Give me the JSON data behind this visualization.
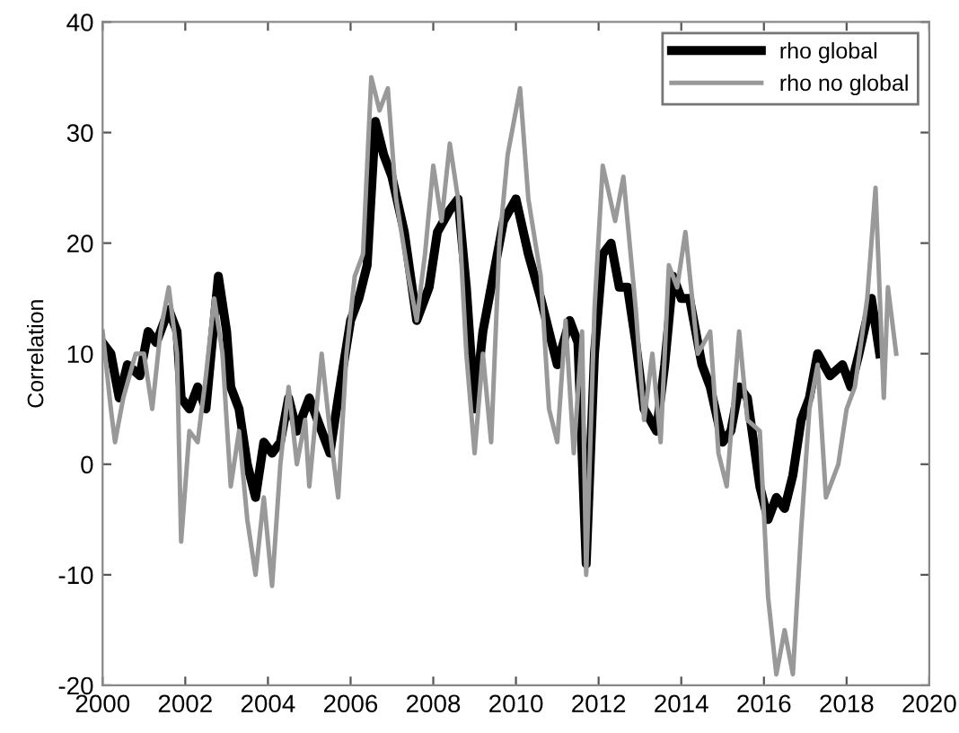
{
  "chart_data": {
    "type": "line",
    "ylabel": "Correlation",
    "legend": "top right",
    "grid": false,
    "marker": "none",
    "line_style": "solid",
    "xlim": [
      2000,
      2020
    ],
    "xticks": [
      2000,
      2002,
      2004,
      2006,
      2008,
      2010,
      2012,
      2014,
      2016,
      2018,
      2020
    ],
    "ylim": [
      -20,
      40
    ],
    "yticks": [
      -20,
      -10,
      0,
      10,
      20,
      30,
      40
    ],
    "series": [
      {
        "name": "rho global",
        "color": "#000000",
        "x": [
          2000.0,
          2000.2,
          2000.4,
          2000.6,
          2000.9,
          2001.1,
          2001.3,
          2001.6,
          2001.8,
          2001.9,
          2002.1,
          2002.3,
          2002.5,
          2002.6,
          2002.8,
          2003.0,
          2003.1,
          2003.3,
          2003.5,
          2003.7,
          2003.9,
          2004.1,
          2004.3,
          2004.5,
          2004.7,
          2005.0,
          2005.3,
          2005.5,
          2005.7,
          2006.0,
          2006.2,
          2006.4,
          2006.6,
          2006.8,
          2007.0,
          2007.3,
          2007.6,
          2007.9,
          2008.1,
          2008.4,
          2008.6,
          2008.8,
          2009.0,
          2009.2,
          2009.5,
          2009.7,
          2010.0,
          2010.3,
          2010.6,
          2010.8,
          2011.0,
          2011.3,
          2011.5,
          2011.7,
          2011.9,
          2012.1,
          2012.3,
          2012.5,
          2012.7,
          2012.9,
          2013.1,
          2013.4,
          2013.6,
          2013.8,
          2014.0,
          2014.2,
          2014.5,
          2014.7,
          2015.0,
          2015.2,
          2015.4,
          2015.6,
          2015.9,
          2016.1,
          2016.3,
          2016.5,
          2016.7,
          2016.9,
          2017.1,
          2017.3,
          2017.6,
          2017.9,
          2018.1,
          2018.3,
          2018.6,
          2018.8
        ],
        "values": [
          11,
          10,
          6,
          9,
          8,
          12,
          11,
          14,
          12,
          6,
          5,
          7,
          5,
          9,
          17,
          12,
          7,
          5,
          0,
          -3,
          2,
          1,
          2,
          6,
          3,
          6,
          3,
          1,
          6,
          13,
          15,
          18,
          31,
          28,
          26,
          21,
          13,
          16,
          21,
          23,
          24,
          16,
          5,
          12,
          18,
          22,
          24,
          19,
          15,
          12,
          9,
          13,
          11,
          -9,
          10,
          19,
          20,
          16,
          16,
          11,
          5,
          3,
          9,
          17,
          15,
          15,
          9,
          7,
          2,
          3,
          7,
          6,
          -2,
          -5,
          -3,
          -4,
          -1,
          4,
          6,
          10,
          8,
          9,
          7,
          10,
          15,
          10
        ]
      },
      {
        "name": "rho no global",
        "color": "#999999",
        "x": [
          2000.0,
          2000.2,
          2000.3,
          2000.5,
          2000.8,
          2001.0,
          2001.2,
          2001.4,
          2001.6,
          2001.8,
          2001.9,
          2002.1,
          2002.3,
          2002.5,
          2002.7,
          2002.9,
          2003.1,
          2003.3,
          2003.5,
          2003.7,
          2003.9,
          2004.1,
          2004.3,
          2004.5,
          2004.7,
          2004.9,
          2005.0,
          2005.3,
          2005.5,
          2005.7,
          2005.9,
          2006.1,
          2006.3,
          2006.5,
          2006.7,
          2006.9,
          2007.1,
          2007.4,
          2007.6,
          2007.8,
          2008.0,
          2008.2,
          2008.4,
          2008.6,
          2008.8,
          2009.0,
          2009.2,
          2009.4,
          2009.6,
          2009.8,
          2010.1,
          2010.3,
          2010.6,
          2010.8,
          2011.0,
          2011.2,
          2011.4,
          2011.6,
          2011.7,
          2011.9,
          2012.1,
          2012.4,
          2012.6,
          2012.9,
          2013.1,
          2013.3,
          2013.5,
          2013.7,
          2013.9,
          2014.1,
          2014.4,
          2014.7,
          2014.9,
          2015.1,
          2015.4,
          2015.6,
          2015.9,
          2016.1,
          2016.3,
          2016.5,
          2016.7,
          2016.9,
          2017.1,
          2017.3,
          2017.5,
          2017.8,
          2018.0,
          2018.2,
          2018.5,
          2018.7,
          2018.9,
          2019.0,
          2019.2
        ],
        "values": [
          12,
          5,
          2,
          6,
          10,
          10,
          5,
          12,
          16,
          10,
          -7,
          3,
          2,
          8,
          15,
          10,
          -2,
          3,
          -5,
          -10,
          -3,
          -11,
          0,
          7,
          0,
          4,
          -2,
          10,
          3,
          -3,
          10,
          17,
          19,
          35,
          32,
          34,
          24,
          17,
          13,
          19,
          27,
          22,
          29,
          24,
          10,
          1,
          10,
          2,
          20,
          28,
          34,
          24,
          17,
          5,
          2,
          13,
          1,
          12,
          -10,
          14,
          27,
          22,
          26,
          14,
          4,
          10,
          2,
          18,
          16,
          21,
          10,
          12,
          1,
          -2,
          12,
          4,
          3,
          -12,
          -19,
          -15,
          -19,
          -6,
          5,
          9,
          -3,
          0,
          5,
          7,
          15,
          25,
          6,
          16,
          10
        ]
      }
    ]
  }
}
